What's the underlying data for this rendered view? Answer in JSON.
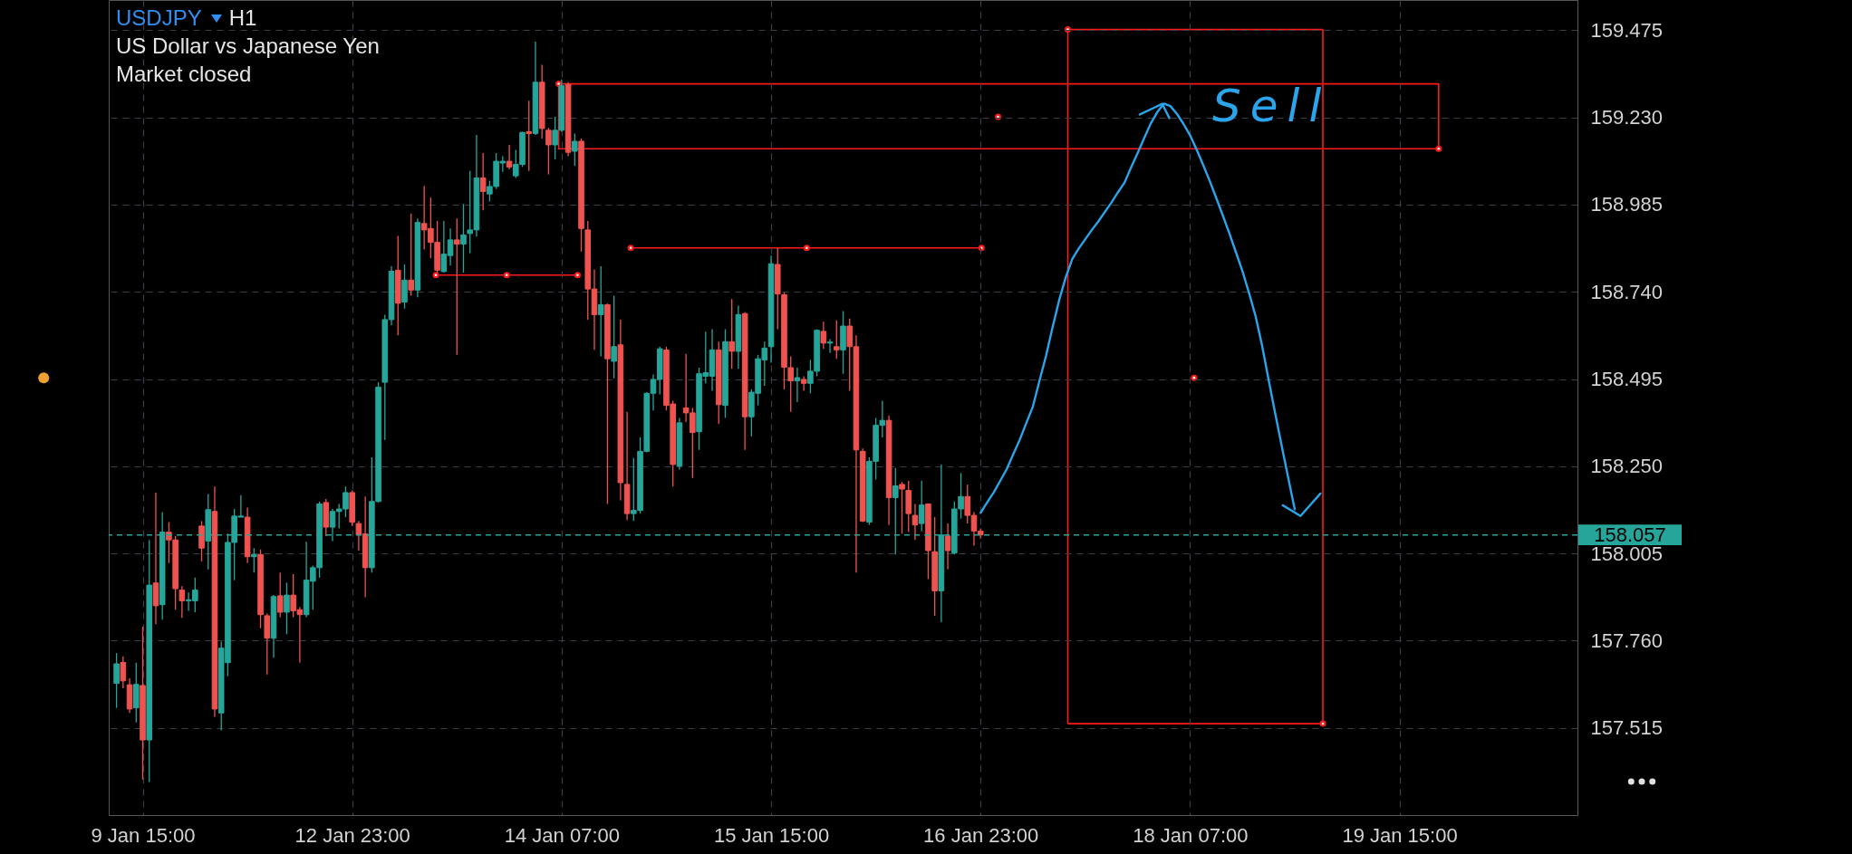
{
  "chart_data": {
    "type": "candlestick",
    "title": "USDJPY",
    "subtitle": "H1",
    "annotations": [
      "US Dollar vs Japanese Yen",
      "Market closed",
      "Sell"
    ],
    "categories": [
      null,
      null,
      null,
      null,
      "9 Jan 15:00",
      null,
      null,
      null,
      null,
      null,
      null,
      null,
      null,
      null,
      null,
      null,
      null,
      null,
      null,
      null,
      null,
      null,
      null,
      null,
      null,
      null,
      null,
      null,
      null,
      null,
      null,
      null,
      null,
      null,
      null,
      null,
      "12 Jan 23:00",
      null,
      null,
      null,
      null,
      null,
      null,
      null,
      null,
      null,
      null,
      null,
      null,
      null,
      null,
      null,
      null,
      null,
      null,
      null,
      null,
      null,
      null,
      null,
      null,
      null,
      null,
      null,
      null,
      null,
      null,
      null,
      "14 Jan 07:00",
      null,
      null,
      null,
      null,
      null,
      null,
      null,
      null,
      null,
      null,
      null,
      null,
      null,
      null,
      null,
      null,
      null,
      null,
      null,
      null,
      null,
      null,
      null,
      null,
      null,
      null,
      null,
      null,
      null,
      null,
      null,
      "15 Jan 15:00",
      null,
      null,
      null,
      null,
      null,
      null,
      null,
      null,
      null,
      null,
      null,
      null,
      null,
      null,
      null,
      null,
      null,
      null,
      null,
      null,
      null,
      null,
      null,
      null,
      null,
      null,
      null,
      null,
      null,
      null,
      null,
      "16 Jan 23:00",
      null,
      null,
      null,
      null,
      null,
      null,
      null,
      null,
      null,
      null,
      null,
      null,
      null,
      null,
      null,
      null,
      null,
      null,
      null,
      null,
      null,
      null,
      null,
      null,
      null,
      null,
      null,
      null,
      null,
      null,
      null,
      "18 Jan 07:00",
      null,
      null,
      null,
      null,
      null,
      null,
      null,
      null,
      null,
      null,
      null,
      null,
      null,
      null,
      null,
      null,
      null,
      null,
      null,
      null,
      null,
      null,
      null,
      null,
      null,
      null,
      null,
      null,
      null,
      null,
      null,
      "19 Jan 15:00",
      null,
      null,
      null,
      null,
      null,
      null,
      null,
      null,
      null,
      null,
      null,
      null,
      null,
      null,
      null,
      null,
      null,
      null,
      null,
      null,
      null,
      null,
      null,
      null,
      null,
      null
    ],
    "ohlc": [
      [
        157.64,
        157.725,
        157.571,
        157.695
      ],
      [
        157.699,
        157.716,
        157.626,
        157.647
      ],
      [
        157.636,
        157.654,
        157.557,
        157.568
      ],
      [
        157.571,
        157.698,
        157.53,
        157.637
      ],
      [
        157.634,
        157.799,
        157.37,
        157.481
      ],
      [
        157.481,
        158.043,
        157.363,
        157.916
      ],
      [
        157.922,
        158.176,
        157.806,
        157.858
      ],
      [
        157.861,
        158.121,
        157.819,
        158.065
      ],
      [
        158.065,
        158.093,
        157.978,
        158.043
      ],
      [
        158.043,
        158.054,
        157.847,
        157.906
      ],
      [
        157.902,
        157.913,
        157.824,
        157.872
      ],
      [
        157.872,
        157.895,
        157.844,
        157.875
      ],
      [
        157.872,
        157.937,
        157.84,
        157.902
      ],
      [
        158.082,
        158.096,
        157.983,
        158.02
      ],
      [
        158.04,
        158.172,
        157.96,
        158.128
      ],
      [
        158.123,
        158.193,
        157.546,
        157.568
      ],
      [
        157.557,
        157.757,
        157.508,
        157.739
      ],
      [
        157.698,
        158.061,
        157.66,
        158.036
      ],
      [
        158.036,
        158.13,
        157.93,
        158.11
      ],
      [
        158.107,
        158.169,
        158.107,
        158.11
      ],
      [
        158.107,
        158.134,
        157.978,
        157.996
      ],
      [
        157.996,
        158.02,
        157.951,
        158.002
      ],
      [
        158.002,
        158.016,
        157.795,
        157.833
      ],
      [
        157.83,
        157.836,
        157.665,
        157.767
      ],
      [
        157.767,
        157.888,
        157.712,
        157.884
      ],
      [
        157.886,
        157.951,
        157.826,
        157.84
      ],
      [
        157.84,
        157.923,
        157.778,
        157.888
      ],
      [
        157.888,
        157.947,
        157.826,
        157.844
      ],
      [
        157.847,
        157.854,
        157.698,
        157.833
      ],
      [
        157.833,
        158.038,
        157.826,
        157.93
      ],
      [
        157.927,
        157.971,
        157.847,
        157.965
      ],
      [
        157.965,
        158.151,
        157.937,
        158.144
      ],
      [
        158.148,
        158.158,
        158.054,
        158.079
      ],
      [
        158.079,
        158.13,
        158.04,
        158.123
      ],
      [
        158.123,
        158.144,
        158.075,
        158.13
      ],
      [
        158.13,
        158.193,
        158.107,
        158.176
      ],
      [
        158.176,
        158.182,
        158.082,
        158.093
      ],
      [
        158.089,
        158.096,
        158.013,
        158.057
      ],
      [
        158.06,
        158.165,
        157.882,
        157.965
      ],
      [
        157.965,
        158.275,
        157.951,
        158.151
      ],
      [
        158.151,
        158.486,
        158.148,
        158.472
      ],
      [
        158.486,
        158.676,
        158.324,
        158.662
      ],
      [
        158.662,
        158.812,
        158.646,
        158.798
      ],
      [
        158.801,
        158.897,
        158.618,
        158.708
      ],
      [
        158.711,
        158.817,
        158.693,
        158.773
      ],
      [
        158.773,
        158.96,
        158.729,
        158.745
      ],
      [
        158.745,
        158.946,
        158.725,
        158.935
      ],
      [
        158.932,
        159.038,
        158.859,
        158.914
      ],
      [
        158.918,
        159.005,
        158.835,
        158.879
      ],
      [
        158.879,
        158.939,
        158.794,
        158.801
      ],
      [
        158.797,
        158.939,
        158.794,
        158.846
      ],
      [
        158.842,
        158.918,
        158.814,
        158.886
      ],
      [
        158.886,
        158.946,
        158.563,
        158.874
      ],
      [
        158.874,
        158.987,
        158.794,
        158.9
      ],
      [
        158.904,
        159.08,
        158.849,
        158.914
      ],
      [
        158.914,
        159.181,
        158.895,
        159.06
      ],
      [
        159.06,
        159.13,
        158.969,
        159.022
      ],
      [
        159.015,
        159.052,
        158.994,
        159.036
      ],
      [
        159.036,
        159.13,
        159.029,
        159.107
      ],
      [
        159.102,
        159.121,
        159.077,
        159.107
      ],
      [
        159.107,
        159.153,
        159.084,
        159.091
      ],
      [
        159.066,
        159.139,
        159.06,
        159.098
      ],
      [
        159.098,
        159.19,
        159.091,
        159.188
      ],
      [
        159.19,
        159.277,
        159.08,
        159.185
      ],
      [
        159.185,
        159.443,
        159.181,
        159.329
      ],
      [
        159.329,
        159.378,
        159.171,
        159.199
      ],
      [
        159.194,
        159.201,
        159.07,
        159.153
      ],
      [
        159.153,
        159.232,
        159.112,
        159.194
      ],
      [
        159.194,
        159.337,
        159.19,
        159.319
      ],
      [
        159.323,
        159.329,
        159.121,
        159.132
      ],
      [
        159.135,
        159.185,
        159.094,
        159.163
      ],
      [
        159.163,
        159.171,
        158.853,
        158.918
      ],
      [
        158.914,
        158.939,
        158.662,
        158.748
      ],
      [
        158.748,
        158.803,
        158.577,
        158.676
      ],
      [
        158.676,
        158.812,
        158.559,
        158.704
      ],
      [
        158.704,
        158.707,
        158.144,
        158.552
      ],
      [
        158.545,
        158.729,
        158.497,
        158.586
      ],
      [
        158.591,
        158.662,
        158.154,
        158.204
      ],
      [
        158.199,
        158.403,
        158.099,
        158.117
      ],
      [
        158.117,
        158.273,
        158.096,
        158.126
      ],
      [
        158.126,
        158.331,
        158.117,
        158.292
      ],
      [
        158.292,
        158.458,
        158.289,
        158.455
      ],
      [
        158.455,
        158.508,
        158.407,
        158.494
      ],
      [
        158.494,
        158.586,
        158.452,
        158.58
      ],
      [
        158.577,
        158.586,
        158.407,
        158.421
      ],
      [
        158.425,
        158.434,
        158.193,
        158.255
      ],
      [
        158.251,
        158.386,
        158.241,
        158.372
      ],
      [
        158.414,
        158.566,
        158.375,
        158.4
      ],
      [
        158.4,
        158.414,
        158.217,
        158.345
      ],
      [
        158.347,
        158.527,
        158.296,
        158.51
      ],
      [
        158.503,
        158.628,
        158.483,
        158.513
      ],
      [
        158.503,
        158.635,
        158.462,
        158.577
      ],
      [
        158.577,
        158.6,
        158.369,
        158.423
      ],
      [
        158.421,
        158.635,
        158.386,
        158.6
      ],
      [
        158.6,
        158.72,
        158.524,
        158.573
      ],
      [
        158.573,
        158.701,
        158.524,
        158.676
      ],
      [
        158.679,
        158.683,
        158.296,
        158.389
      ],
      [
        158.389,
        158.466,
        158.334,
        158.458
      ],
      [
        158.455,
        158.563,
        158.421,
        158.552
      ],
      [
        158.549,
        158.6,
        158.476,
        158.582
      ],
      [
        158.586,
        158.842,
        158.541,
        158.819
      ],
      [
        158.817,
        158.863,
        158.635,
        158.734
      ],
      [
        158.732,
        158.738,
        158.466,
        158.528
      ],
      [
        158.527,
        158.559,
        158.403,
        158.49
      ],
      [
        158.49,
        158.527,
        158.43,
        158.499
      ],
      [
        158.494,
        158.503,
        158.462,
        158.483
      ],
      [
        158.483,
        158.549,
        158.455,
        158.517
      ],
      [
        158.517,
        158.635,
        158.503,
        158.632
      ],
      [
        158.629,
        158.656,
        158.58,
        158.596
      ],
      [
        158.596,
        158.607,
        158.568,
        158.599
      ],
      [
        158.586,
        158.66,
        158.552,
        158.577
      ],
      [
        158.577,
        158.686,
        158.51,
        158.644
      ],
      [
        158.644,
        158.665,
        158.462,
        158.586
      ],
      [
        158.586,
        158.618,
        157.951,
        158.296
      ],
      [
        158.292,
        158.3,
        158.093,
        158.096
      ],
      [
        158.093,
        158.275,
        158.085,
        158.264
      ],
      [
        158.264,
        158.386,
        158.213,
        158.365
      ],
      [
        158.365,
        158.434,
        158.331,
        158.379
      ],
      [
        158.379,
        158.393,
        158.085,
        158.162
      ],
      [
        158.162,
        158.245,
        158.002,
        158.195
      ],
      [
        158.199,
        158.206,
        158.061,
        158.186
      ],
      [
        158.182,
        158.209,
        158.065,
        158.117
      ],
      [
        158.112,
        158.144,
        158.043,
        158.085
      ],
      [
        158.089,
        158.209,
        158.068,
        158.141
      ],
      [
        158.144,
        158.144,
        157.933,
        158.013
      ],
      [
        158.01,
        158.107,
        157.83,
        157.9
      ],
      [
        157.9,
        158.255,
        157.812,
        158.057
      ],
      [
        158.054,
        158.089,
        157.96,
        158.013
      ],
      [
        158.006,
        158.151,
        158.002,
        158.13
      ],
      [
        158.13,
        158.231,
        158.103,
        158.165
      ],
      [
        158.165,
        158.199,
        158.089,
        158.112
      ],
      [
        158.112,
        158.121,
        158.027,
        158.068
      ],
      [
        158.068,
        158.075,
        158.047,
        158.057
      ],
      null,
      null,
      null,
      null,
      null,
      null,
      null,
      null,
      null,
      null,
      null,
      null,
      null,
      null,
      null,
      null,
      null,
      null,
      null,
      null,
      null,
      null,
      null,
      null,
      null,
      null,
      null,
      null,
      null,
      null,
      null,
      null,
      null,
      null,
      null,
      null,
      null,
      null,
      null,
      null,
      null,
      null,
      null,
      null,
      null,
      null,
      null,
      null,
      null,
      null,
      null,
      null,
      null,
      null,
      null,
      null,
      null,
      null,
      null,
      null,
      null,
      null,
      null,
      null,
      null,
      null,
      null,
      null,
      null,
      null,
      null,
      null,
      null,
      null,
      null,
      null,
      null,
      null,
      null,
      null,
      null,
      null,
      null,
      null,
      null,
      null,
      null,
      null,
      null,
      null
    ],
    "series": [
      {
        "type": "line",
        "color": "#2aa4ea",
        "values": [
          null,
          null,
          null,
          null,
          null,
          null,
          null,
          null,
          null,
          null,
          null,
          null,
          null,
          null,
          null,
          null,
          null,
          null,
          null,
          null,
          null,
          null,
          null,
          null,
          null,
          null,
          null,
          null,
          null,
          null,
          null,
          null,
          null,
          null,
          null,
          null,
          null,
          null,
          null,
          null,
          null,
          null,
          null,
          null,
          null,
          null,
          null,
          null,
          null,
          null,
          null,
          null,
          null,
          null,
          null,
          null,
          null,
          null,
          null,
          null,
          null,
          null,
          null,
          null,
          null,
          null,
          null,
          null,
          null,
          null,
          null,
          null,
          null,
          null,
          null,
          null,
          null,
          null,
          null,
          null,
          null,
          null,
          null,
          null,
          null,
          null,
          null,
          null,
          null,
          null,
          null,
          null,
          null,
          null,
          null,
          null,
          null,
          null,
          null,
          null,
          null,
          null,
          null,
          null,
          null,
          null,
          null,
          null,
          null,
          null,
          null,
          null,
          null,
          null,
          null,
          null,
          null,
          null,
          null,
          null,
          null,
          null,
          null,
          null,
          null,
          null,
          null,
          null,
          null,
          null,
          null,
          null,
          158.119,
          158.148,
          158.176,
          158.209,
          158.242,
          158.284,
          158.325,
          158.372,
          158.418,
          158.49,
          158.56,
          158.64,
          158.716,
          158.78,
          158.832,
          158.862,
          158.888,
          158.914,
          158.938,
          158.965,
          158.991,
          159.02,
          159.047,
          159.09,
          159.13,
          159.172,
          159.213,
          159.245,
          159.269,
          159.262,
          159.24,
          159.212,
          159.18,
          159.14,
          159.097,
          159.052,
          159.004,
          158.955,
          158.905,
          158.852,
          158.799,
          158.738,
          158.673,
          158.59,
          158.494,
          158.4,
          158.308,
          158.218,
          158.129,
          null,
          null,
          null,
          null,
          null,
          null,
          null,
          null,
          null,
          null,
          null,
          null,
          null,
          null,
          null,
          null,
          null,
          null,
          null,
          null,
          null,
          null,
          null,
          null,
          null,
          null,
          null,
          null,
          null,
          null,
          null,
          null,
          null,
          null,
          null,
          null,
          null,
          null,
          null,
          null,
          null,
          null
        ]
      }
    ],
    "ylim": [
      157.27,
      159.56
    ],
    "yticks": [
      159.475,
      {
        "value": 159.23,
        "label": "159.230"
      },
      158.985,
      {
        "value": 158.74,
        "label": "158.740"
      },
      158.495,
      {
        "value": 158.25,
        "label": "158.250"
      },
      158.005,
      {
        "value": 157.76,
        "label": "157.760"
      },
      157.515
    ],
    "grid": true,
    "ref_lines": [
      {
        "axis": "y",
        "value": 158.057,
        "label": "158.057",
        "color": "#26a69a",
        "line_style": "dashed"
      }
    ]
  }
}
